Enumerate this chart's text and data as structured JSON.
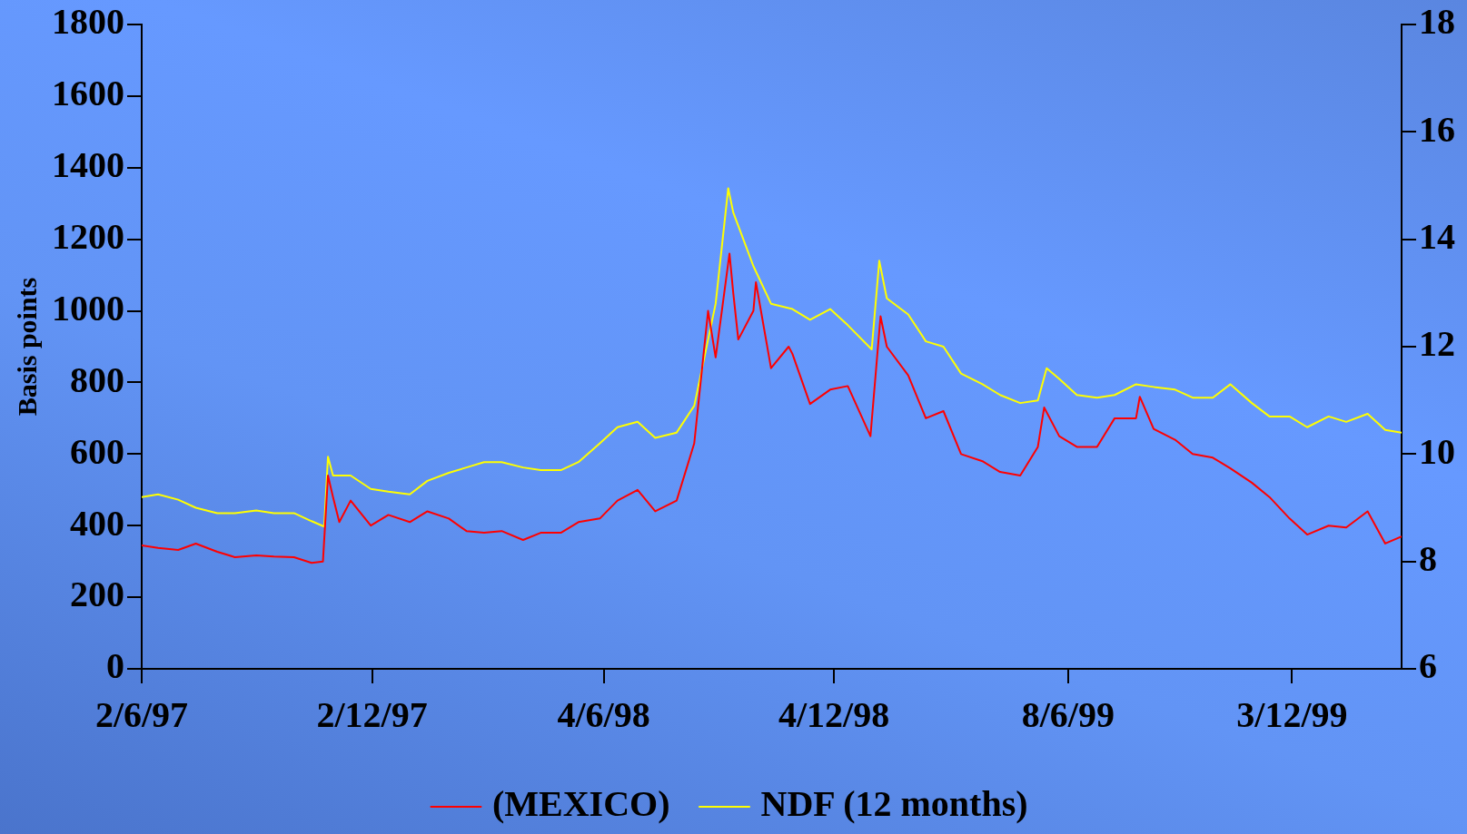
{
  "chart_data": {
    "type": "line",
    "ylabel": "Basis points",
    "legend": "bottom",
    "grid": false,
    "xlim": [
      "1997-06-02",
      "2000-02-28"
    ],
    "xticks": [
      {
        "value": "1997-06-02",
        "label": "2/6/97"
      },
      {
        "value": "1997-12-02",
        "label": "2/12/97"
      },
      {
        "value": "1998-06-04",
        "label": "4/6/98"
      },
      {
        "value": "1998-12-04",
        "label": "4/12/98"
      },
      {
        "value": "1999-06-08",
        "label": "8/6/99"
      },
      {
        "value": "1999-12-03",
        "label": "3/12/99"
      }
    ],
    "ylim": [
      0,
      1800
    ],
    "yticks": [
      0,
      200,
      400,
      600,
      800,
      1000,
      1200,
      1400,
      1600,
      1800
    ],
    "y2lim": [
      6,
      18
    ],
    "y2ticks": [
      6,
      8,
      10,
      12,
      14,
      16,
      18
    ],
    "series": [
      {
        "name": "(MEXICO)",
        "color": "#ff0000",
        "x": [
          "1997-06-02",
          "1997-06-15",
          "1997-07-01",
          "1997-07-15",
          "1997-08-01",
          "1997-08-15",
          "1997-09-01",
          "1997-09-15",
          "1997-10-01",
          "1997-10-15",
          "1997-10-24",
          "1997-10-28",
          "1997-11-01",
          "1997-11-06",
          "1997-11-15",
          "1997-12-01",
          "1997-12-15",
          "1998-01-01",
          "1998-01-15",
          "1998-02-01",
          "1998-02-15",
          "1998-03-01",
          "1998-03-15",
          "1998-04-01",
          "1998-04-15",
          "1998-05-01",
          "1998-05-15",
          "1998-06-01",
          "1998-06-15",
          "1998-07-01",
          "1998-07-15",
          "1998-08-01",
          "1998-08-15",
          "1998-08-26",
          "1998-09-01",
          "1998-09-12",
          "1998-09-15",
          "1998-09-19",
          "1998-10-01",
          "1998-10-03",
          "1998-10-15",
          "1998-10-29",
          "1998-11-01",
          "1998-11-15",
          "1998-12-01",
          "1998-12-15",
          "1999-01-02",
          "1999-01-10",
          "1999-01-15",
          "1999-02-01",
          "1999-02-15",
          "1999-03-01",
          "1999-03-15",
          "1999-04-01",
          "1999-04-15",
          "1999-05-01",
          "1999-05-15",
          "1999-05-20",
          "1999-06-01",
          "1999-06-15",
          "1999-07-01",
          "1999-07-15",
          "1999-08-01",
          "1999-08-04",
          "1999-08-15",
          "1999-09-01",
          "1999-09-15",
          "1999-10-01",
          "1999-10-15",
          "1999-11-01",
          "1999-11-15",
          "1999-12-01",
          "1999-12-15",
          "2000-01-01",
          "2000-01-15",
          "2000-02-01",
          "2000-02-15",
          "2000-02-28"
        ],
        "values": [
          345,
          338,
          332,
          350,
          327,
          312,
          317,
          314,
          312,
          296,
          300,
          540,
          480,
          410,
          470,
          400,
          430,
          410,
          440,
          420,
          385,
          380,
          385,
          360,
          380,
          380,
          410,
          420,
          470,
          500,
          440,
          470,
          630,
          1000,
          870,
          1160,
          1050,
          920,
          1000,
          1080,
          840,
          900,
          880,
          740,
          780,
          790,
          650,
          985,
          900,
          820,
          700,
          720,
          600,
          580,
          550,
          540,
          620,
          730,
          650,
          620,
          620,
          700,
          700,
          760,
          670,
          640,
          600,
          590,
          560,
          520,
          480,
          420,
          375,
          400,
          395,
          440,
          350,
          370
        ]
      },
      {
        "name": "NDF (12 months)",
        "color": "#ffff00",
        "axis": "y2",
        "x": [
          "1997-06-02",
          "1997-06-15",
          "1997-07-01",
          "1997-07-15",
          "1997-08-01",
          "1997-08-15",
          "1997-09-01",
          "1997-09-15",
          "1997-10-01",
          "1997-10-15",
          "1997-10-25",
          "1997-10-28",
          "1997-11-01",
          "1997-11-15",
          "1997-12-01",
          "1997-12-15",
          "1998-01-01",
          "1998-01-15",
          "1998-02-01",
          "1998-02-15",
          "1998-03-01",
          "1998-03-15",
          "1998-04-01",
          "1998-04-15",
          "1998-05-01",
          "1998-05-15",
          "1998-06-01",
          "1998-06-15",
          "1998-07-01",
          "1998-07-15",
          "1998-08-01",
          "1998-08-15",
          "1998-09-01",
          "1998-09-11",
          "1998-09-15",
          "1998-10-01",
          "1998-10-15",
          "1998-11-01",
          "1998-11-15",
          "1998-12-01",
          "1998-12-15",
          "1999-01-03",
          "1999-01-09",
          "1999-01-15",
          "1999-02-01",
          "1999-02-15",
          "1999-03-01",
          "1999-03-15",
          "1999-04-01",
          "1999-04-15",
          "1999-05-01",
          "1999-05-15",
          "1999-05-22",
          "1999-06-01",
          "1999-06-15",
          "1999-07-01",
          "1999-07-15",
          "1999-08-01",
          "1999-08-15",
          "1999-09-01",
          "1999-09-15",
          "1999-10-01",
          "1999-10-15",
          "1999-11-01",
          "1999-11-15",
          "1999-12-01",
          "1999-12-15",
          "2000-01-01",
          "2000-01-15",
          "2000-02-01",
          "2000-02-15",
          "2000-02-28"
        ],
        "values": [
          9.2,
          9.25,
          9.15,
          9.0,
          8.9,
          8.9,
          8.95,
          8.9,
          8.9,
          8.75,
          8.65,
          9.95,
          9.6,
          9.6,
          9.35,
          9.3,
          9.25,
          9.5,
          9.65,
          9.75,
          9.85,
          9.85,
          9.75,
          9.7,
          9.7,
          9.85,
          10.2,
          10.5,
          10.6,
          10.3,
          10.4,
          10.9,
          12.8,
          14.95,
          14.5,
          13.5,
          12.8,
          12.7,
          12.5,
          12.7,
          12.4,
          11.95,
          13.6,
          12.9,
          12.6,
          12.1,
          12.0,
          11.5,
          11.3,
          11.1,
          10.95,
          11.0,
          11.6,
          11.4,
          11.1,
          11.05,
          11.1,
          11.3,
          11.25,
          11.2,
          11.05,
          11.05,
          11.3,
          10.95,
          10.7,
          10.7,
          10.5,
          10.7,
          10.6,
          10.75,
          10.45,
          10.4
        ]
      }
    ]
  }
}
